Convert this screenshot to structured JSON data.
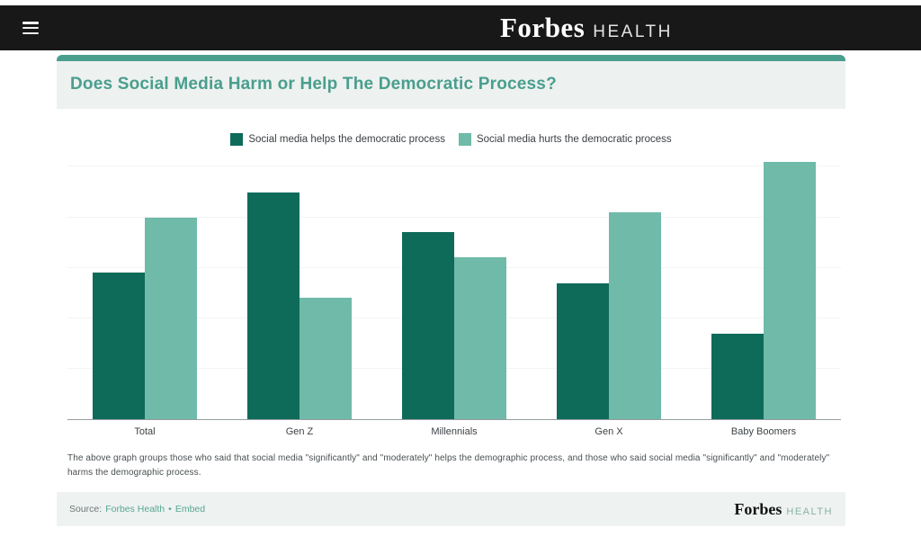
{
  "header": {
    "logo_forbes": "Forbes",
    "logo_health": "HEALTH"
  },
  "title": "Does Social Media Harm or Help The Democratic Process?",
  "chart_data": {
    "type": "bar",
    "categories": [
      "Total",
      "Gen Z",
      "Millennials",
      "Gen X",
      "Baby Boomers"
    ],
    "series": [
      {
        "name": "Social media helps the democratic process",
        "color": "#0e6b5a",
        "values": [
          29,
          45,
          37,
          27,
          17
        ]
      },
      {
        "name": "Social media hurts the democratic process",
        "color": "#6fbaa8",
        "values": [
          40,
          24,
          32,
          41,
          51
        ]
      }
    ],
    "ylim": [
      0,
      52
    ],
    "gridlines": [
      10,
      20,
      30,
      40,
      50
    ],
    "grid": true,
    "legend_position": "top",
    "title": "Does Social Media Harm or Help The Democratic Process?",
    "xlabel": "",
    "ylabel": ""
  },
  "footnote": "The above graph groups those who said that social media \"significantly\" and \"moderately\" helps the demographic process, and those who said social media \"significantly\" and \"moderately\" harms the demographic process.",
  "footer": {
    "source_label": "Source:",
    "source_link": "Forbes Health",
    "separator": "•",
    "embed_link": "Embed",
    "logo_forbes": "Forbes",
    "logo_health": "HEALTH"
  },
  "colors": {
    "accent_teal": "#4a9e8e",
    "series_helps": "#0e6b5a",
    "series_hurts": "#6fbaa8",
    "link_teal": "#58a794",
    "header_bg": "#181818",
    "card_bg": "#edf1ef",
    "footer_bg": "#eef2f0"
  }
}
